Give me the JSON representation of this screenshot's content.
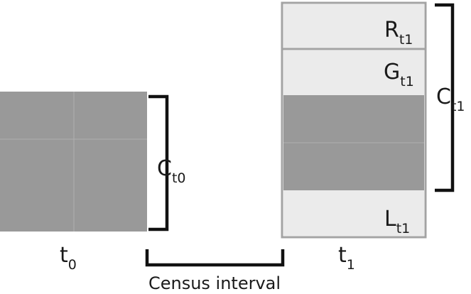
{
  "labels": {
    "c_t0": {
      "base": "C",
      "sub": "t0"
    },
    "t0": {
      "base": "t",
      "sub": "0"
    },
    "t1": {
      "base": "t",
      "sub": "1"
    },
    "census_interval": "Census interval",
    "r_t1": {
      "base": "R",
      "sub": "t1"
    },
    "g_t1": {
      "base": "G",
      "sub": "t1"
    },
    "c_t1": {
      "base": "C",
      "sub": "t1"
    },
    "l_t1": {
      "base": "L",
      "sub": "t1"
    }
  },
  "colors": {
    "cell_dark": "#999999",
    "cell_light": "#ebebeb",
    "grid_line": "#b5b5b5",
    "border": "#a3a3a3",
    "bracket": "#111111",
    "text": "#1a1a1a"
  }
}
